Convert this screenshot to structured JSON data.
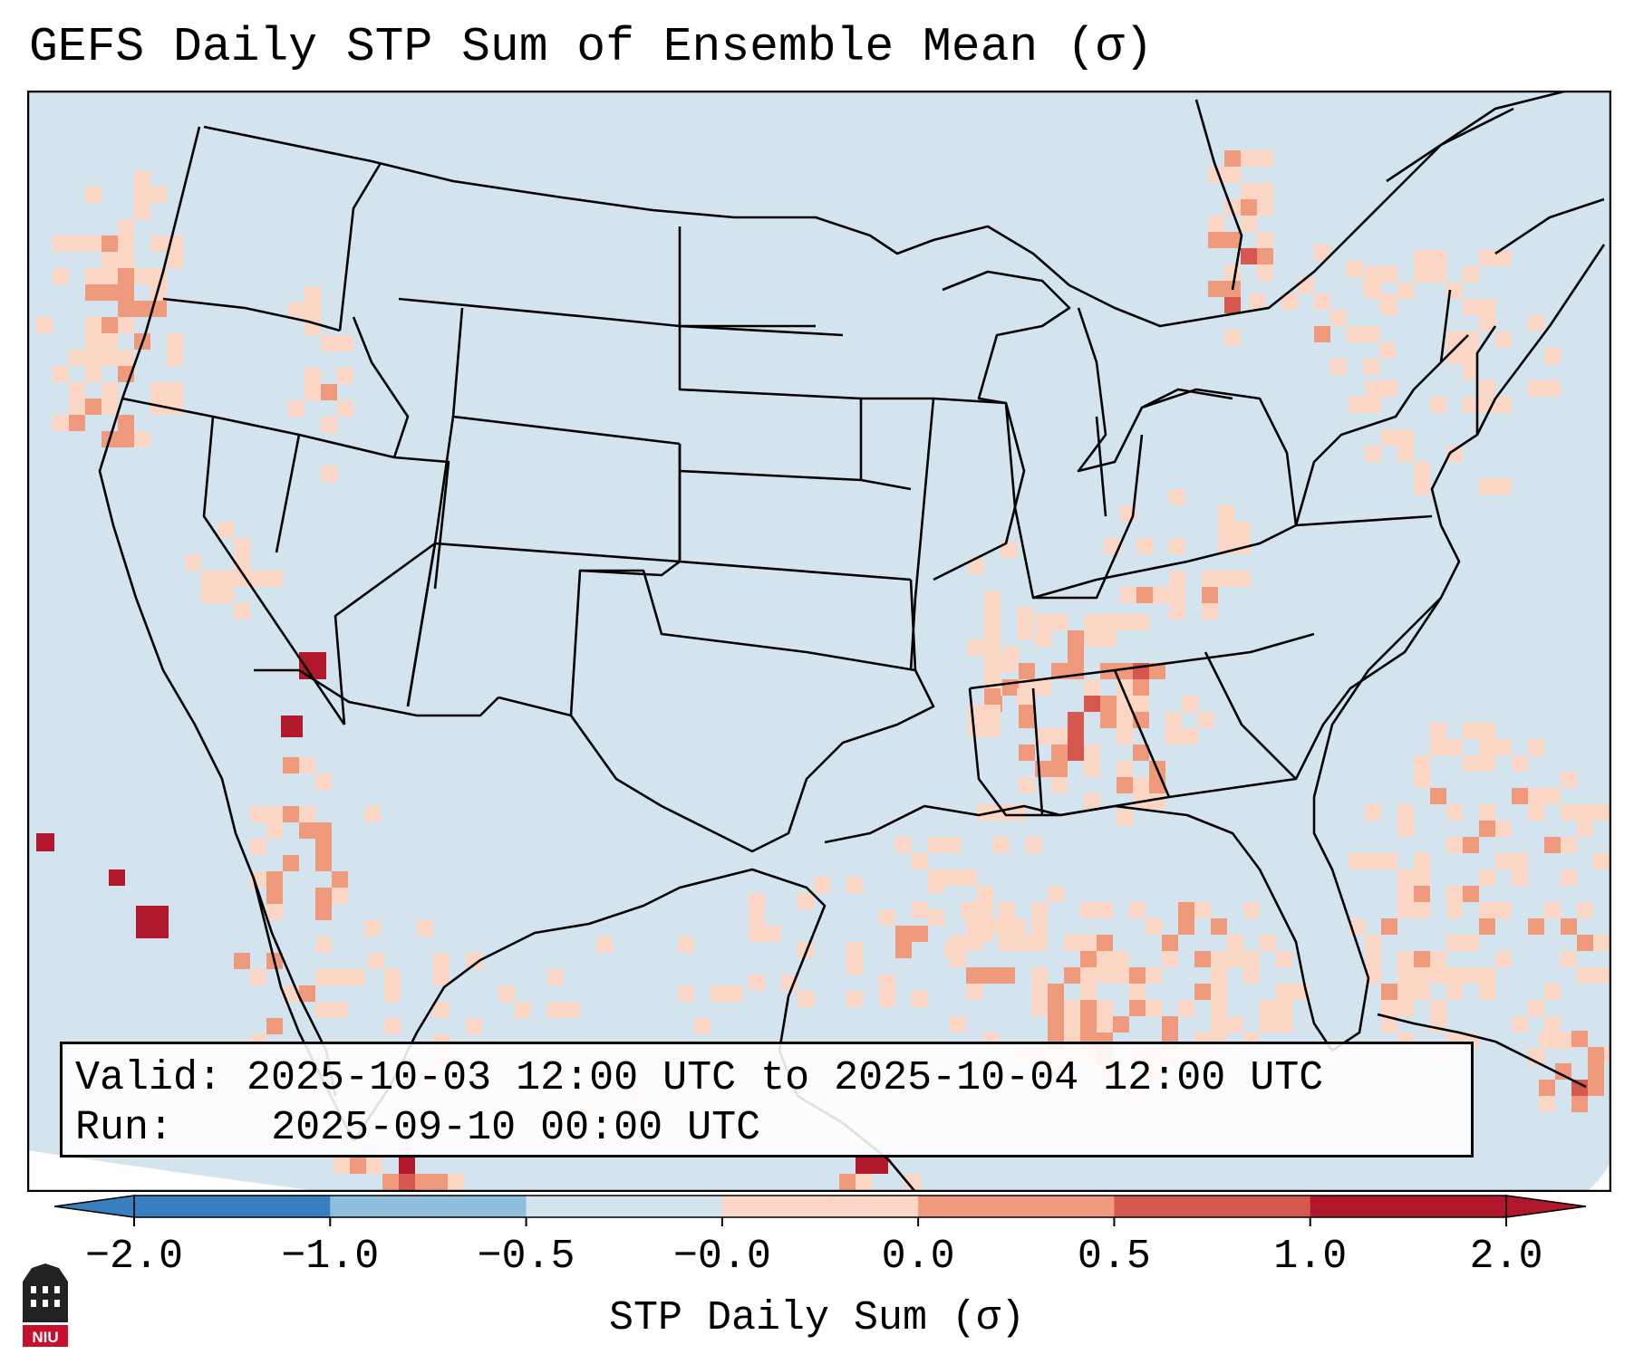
{
  "title": "GEFS Daily STP Sum of Ensemble Mean (σ)",
  "info": {
    "valid_label": "Valid:",
    "valid_value": "2025-10-03 12:00 UTC to 2025-10-04 12:00 UTC",
    "run_label": "Run:",
    "run_value": "2025-09-10 00:00 UTC"
  },
  "colorbar": {
    "label": "STP Daily Sum (σ)",
    "ticks": [
      "−2.0",
      "−1.0",
      "−0.5",
      "−0.0",
      "0.0",
      "0.5",
      "1.0",
      "2.0"
    ],
    "colors": [
      "#3a7fbf",
      "#8fbfdd",
      "#d3e4ef",
      "#f7f7f7",
      "#fbd6c4",
      "#ef9a7d",
      "#d6574d",
      "#b2182b"
    ],
    "extend": "both"
  },
  "map": {
    "background_color": "#d3e4ef",
    "region": "Contiguous United States",
    "anomaly_colors": {
      "weak": "#fbd6c4",
      "moderate": "#ef9a7d",
      "strong": "#d6574d",
      "extreme": "#b2182b"
    }
  },
  "logo_text": "NIU"
}
